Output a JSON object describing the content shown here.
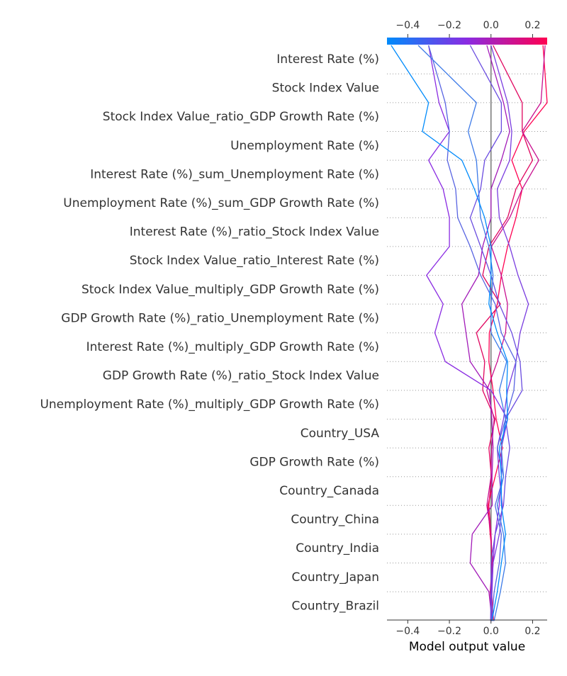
{
  "chart_data": {
    "type": "line",
    "subtype": "shap-decision-plot",
    "title": "",
    "xlabel": "Model output value",
    "ylabel": "",
    "xlim": [
      -0.5,
      0.27
    ],
    "xticks": [
      -0.4,
      -0.2,
      0.0,
      0.2
    ],
    "xtick_labels": [
      "−0.4",
      "−0.2",
      "0.0",
      "0.2"
    ],
    "base_value": 0.0,
    "features": [
      "Interest Rate (%)",
      "Stock Index Value",
      "Stock Index Value_ratio_GDP Growth Rate (%)",
      "Unemployment Rate (%)",
      "Interest Rate (%)_sum_Unemployment Rate (%)",
      "Unemployment Rate (%)_sum_GDP Growth Rate (%)",
      "Interest Rate (%)_ratio_Stock Index Value",
      "Stock Index Value_ratio_Interest Rate (%)",
      "Stock Index Value_multiply_GDP Growth Rate (%)",
      "GDP Growth Rate (%)_ratio_Unemployment Rate (%)",
      "Interest Rate (%)_multiply_GDP Growth Rate (%)",
      "GDP Growth Rate (%)_ratio_Stock Index Value",
      "Unemployment Rate (%)_multiply_GDP Growth Rate (%)",
      "Country_USA",
      "GDP Growth Rate (%)",
      "Country_Canada",
      "Country_China",
      "Country_India",
      "Country_Japan",
      "Country_Brazil"
    ],
    "colorbar": {
      "colors": [
        "#008bfb",
        "#8a2be2",
        "#ff0051"
      ],
      "range": [
        -0.5,
        0.27
      ]
    },
    "grid": "dotted horizontal lines at feature rows",
    "series": [
      {
        "color": "#ff0051",
        "x": [
          0.0,
          0.012,
          0.003,
          0.01,
          -0.004,
          -0.015,
          0.02,
          0.055,
          0.025,
          0.01,
          -0.01,
          -0.008,
          0.03,
          0.05,
          0.08,
          0.12,
          0.15,
          0.1,
          0.16,
          0.27,
          0.25
        ]
      },
      {
        "color": "#e0055f",
        "x": [
          0.0,
          0.005,
          0.0,
          0.005,
          0.0,
          -0.01,
          0.002,
          -0.01,
          0.02,
          -0.04,
          -0.03,
          -0.07,
          0.045,
          -0.04,
          -0.01,
          0.08,
          0.12,
          0.2,
          0.15,
          0.15,
          0.01
        ]
      },
      {
        "color": "#c8108f",
        "x": [
          0.0,
          0.003,
          -0.004,
          0.006,
          0.0,
          -0.02,
          0.0,
          0.003,
          0.015,
          -0.02,
          0.03,
          0.07,
          0.08,
          0.05,
          0.002,
          0.09,
          0.15,
          0.23,
          0.15,
          0.24,
          0.26
        ]
      },
      {
        "color": "#a21ab8",
        "x": [
          0.0,
          0.005,
          -0.01,
          -0.1,
          -0.09,
          0.006,
          0.005,
          0.01,
          0.004,
          -0.007,
          -0.1,
          -0.12,
          -0.14,
          -0.06,
          -0.04,
          0.0,
          0.0,
          0.05,
          0.09,
          0.06,
          -0.02
        ]
      },
      {
        "color": "#8a2be2",
        "x": [
          0.0,
          0.0,
          0.005,
          0.01,
          0.02,
          0.04,
          0.05,
          0.05,
          0.08,
          0.0,
          -0.22,
          -0.27,
          -0.23,
          -0.31,
          -0.2,
          -0.2,
          -0.23,
          -0.3,
          -0.2,
          -0.25,
          -0.3
        ]
      },
      {
        "color": "#7a3de0",
        "x": [
          0.0,
          -0.002,
          0.0,
          0.01,
          0.04,
          0.055,
          0.04,
          0.03,
          0.06,
          0.08,
          0.12,
          0.14,
          0.18,
          0.13,
          0.09,
          0.04,
          0.03,
          0.09,
          0.1,
          0.08,
          0.0
        ]
      },
      {
        "color": "#6a4ce0",
        "x": [
          0.0,
          0.0,
          0.002,
          0.0,
          0.02,
          0.06,
          0.07,
          0.09,
          0.07,
          0.15,
          0.14,
          0.1,
          0.04,
          0.0,
          -0.05,
          -0.1,
          -0.05,
          -0.03,
          0.05,
          0.05,
          -0.1
        ]
      },
      {
        "color": "#5864e2",
        "x": [
          0.0,
          0.004,
          0.015,
          0.04,
          0.05,
          0.02,
          0.06,
          0.03,
          0.07,
          0.11,
          0.12,
          0.05,
          0.02,
          -0.05,
          -0.1,
          -0.16,
          -0.17,
          -0.21,
          -0.2,
          -0.22,
          -0.3
        ]
      },
      {
        "color": "#3c7ae8",
        "x": [
          0.0,
          0.015,
          0.045,
          0.07,
          0.06,
          0.03,
          0.06,
          0.05,
          0.07,
          0.04,
          0.075,
          0.0,
          0.0,
          0.01,
          -0.01,
          -0.05,
          -0.06,
          -0.07,
          -0.11,
          -0.07,
          -0.35
        ]
      },
      {
        "color": "#008bfb",
        "x": [
          0.0,
          0.005,
          0.03,
          0.05,
          0.07,
          0.05,
          0.05,
          0.04,
          0.08,
          0.075,
          0.08,
          0.03,
          -0.01,
          0.0,
          0.0,
          -0.03,
          -0.08,
          -0.14,
          -0.33,
          -0.3,
          -0.48
        ]
      }
    ]
  }
}
